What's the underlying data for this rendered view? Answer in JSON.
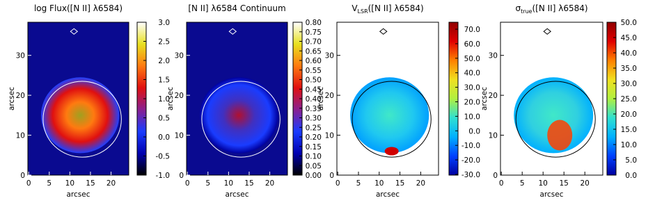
{
  "chart_data": [
    {
      "type": "heatmap",
      "title": "log Flux([N II] λ6584)",
      "xlabel": "arcsec",
      "ylabel": "arcsec",
      "xlim": [
        -0.2,
        24.3
      ],
      "xticks": [
        0,
        5,
        10,
        15,
        20
      ],
      "ylim": [
        0,
        38.3
      ],
      "yticks": [
        0,
        10,
        20,
        30
      ],
      "colormap": [
        "#000000",
        "#0000b0",
        "#1a3cff",
        "#8a2090",
        "#e01010",
        "#ff7a10",
        "#e8e020",
        "#ffffff"
      ],
      "clim": [
        -1.0,
        3.0
      ],
      "cticks": [
        {
          "value": 3.0,
          "label": "3.0"
        },
        {
          "value": 2.5,
          "label": "2.5"
        },
        {
          "value": 2.0,
          "label": "2.0"
        },
        {
          "value": 1.5,
          "label": "1.5"
        },
        {
          "value": 1.0,
          "label": "1.0"
        },
        {
          "value": 0.5,
          "label": "0.5"
        },
        {
          "value": 0.0,
          "label": "0.0"
        },
        {
          "value": -0.5,
          "label": "-0.5"
        },
        {
          "value": -1.0,
          "label": "-1.0"
        }
      ]
    },
    {
      "type": "heatmap",
      "title": "[N II] λ6584 Continuum",
      "xlabel": "arcsec",
      "ylabel": "arcsec",
      "xlim": [
        -0.2,
        24.3
      ],
      "xticks": [
        0,
        5,
        10,
        15,
        20
      ],
      "ylim": [
        0,
        38.3
      ],
      "yticks": [
        0,
        10,
        20,
        30
      ],
      "colormap": [
        "#000000",
        "#0000b0",
        "#1a3cff",
        "#8a2090",
        "#e01010",
        "#ff7a10",
        "#e8e020",
        "#ffffff"
      ],
      "clim": [
        0.0,
        0.8
      ],
      "cticks": [
        {
          "value": 0.8,
          "label": "0.80"
        },
        {
          "value": 0.75,
          "label": "0.75"
        },
        {
          "value": 0.7,
          "label": "0.70"
        },
        {
          "value": 0.65,
          "label": "0.65"
        },
        {
          "value": 0.6,
          "label": "0.60"
        },
        {
          "value": 0.55,
          "label": "0.55"
        },
        {
          "value": 0.5,
          "label": "0.50"
        },
        {
          "value": 0.45,
          "label": "0.45"
        },
        {
          "value": 0.4,
          "label": "0.40"
        },
        {
          "value": 0.35,
          "label": "0.35"
        },
        {
          "value": 0.3,
          "label": "0.30"
        },
        {
          "value": 0.25,
          "label": "0.25"
        },
        {
          "value": 0.2,
          "label": "0.20"
        },
        {
          "value": 0.15,
          "label": "0.15"
        },
        {
          "value": 0.1,
          "label": "0.10"
        },
        {
          "value": 0.05,
          "label": "0.05"
        },
        {
          "value": 0.0,
          "label": "0.00"
        }
      ]
    },
    {
      "type": "heatmap",
      "title": {
        "main": "V",
        "sub": "LSR",
        "rest": "([N II] λ6584)"
      },
      "xlabel": "arcsec",
      "ylabel": "arcsec",
      "xlim": [
        -0.2,
        24.3
      ],
      "xticks": [
        0,
        5,
        10,
        15,
        20
      ],
      "ylim": [
        0,
        38.3
      ],
      "yticks": [
        0,
        10,
        20,
        30
      ],
      "colormap": [
        "#0000a0",
        "#0040ff",
        "#00b0ff",
        "#30e0d0",
        "#b0f040",
        "#f0e020",
        "#ff8000",
        "#e00000",
        "#900000"
      ],
      "clim": [
        -30.5,
        74.8
      ],
      "cticks": [
        {
          "value": 70,
          "label": "70.0"
        },
        {
          "value": 60,
          "label": "60.0"
        },
        {
          "value": 50,
          "label": "50.0"
        },
        {
          "value": 40,
          "label": "40.0"
        },
        {
          "value": 30,
          "label": "30.0"
        },
        {
          "value": 20,
          "label": "20.0"
        },
        {
          "value": 10,
          "label": "10.0"
        },
        {
          "value": 0,
          "label": "0.0"
        },
        {
          "value": -10,
          "label": "-10.0"
        },
        {
          "value": -20,
          "label": "-20.0"
        },
        {
          "value": -30,
          "label": "-30.0"
        }
      ]
    },
    {
      "type": "heatmap",
      "title": {
        "main": "σ",
        "sub": "true",
        "rest": "([N II] λ6584)"
      },
      "xlabel": "arcsec",
      "ylabel": "arcsec",
      "xlim": [
        -0.2,
        24.3
      ],
      "xticks": [
        0,
        5,
        10,
        15,
        20
      ],
      "ylim": [
        0,
        38.3
      ],
      "yticks": [
        0,
        10,
        20,
        30
      ],
      "colormap": [
        "#0000a0",
        "#0040ff",
        "#00b0ff",
        "#30e0d0",
        "#b0f040",
        "#f0e020",
        "#ff8000",
        "#e00000",
        "#900000"
      ],
      "clim": [
        0.0,
        50.0
      ],
      "cticks": [
        {
          "value": 50,
          "label": "50.0"
        },
        {
          "value": 45,
          "label": "45.0"
        },
        {
          "value": 40,
          "label": "40.0"
        },
        {
          "value": 35,
          "label": "35.0"
        },
        {
          "value": 30,
          "label": "30.0"
        },
        {
          "value": 25,
          "label": "25.0"
        },
        {
          "value": 20,
          "label": "20.0"
        },
        {
          "value": 15,
          "label": "15.0"
        },
        {
          "value": 10,
          "label": "10.0"
        },
        {
          "value": 5,
          "label": "5.0"
        },
        {
          "value": 0,
          "label": "0.0"
        }
      ]
    }
  ]
}
